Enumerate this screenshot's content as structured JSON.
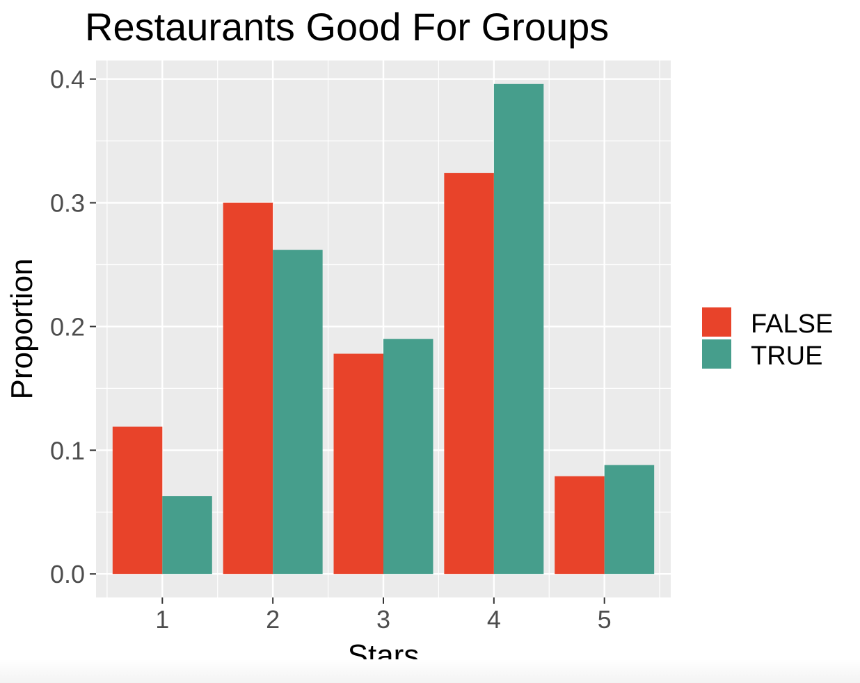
{
  "chart_data": {
    "type": "bar",
    "title": "Restaurants Good For Groups",
    "xlabel": "Stars",
    "ylabel": "Proportion",
    "categories": [
      "1",
      "2",
      "3",
      "4",
      "5"
    ],
    "series": [
      {
        "name": "FALSE",
        "color": "#e8432a",
        "values": [
          0.119,
          0.3,
          0.178,
          0.324,
          0.079
        ]
      },
      {
        "name": "TRUE",
        "color": "#469e8c",
        "values": [
          0.063,
          0.262,
          0.19,
          0.396,
          0.088
        ]
      }
    ],
    "ylim": [
      -0.019,
      0.415
    ],
    "yticks": [
      0.0,
      0.1,
      0.2,
      0.3,
      0.4
    ],
    "ytick_labels": [
      "0.0",
      "0.1",
      "0.2",
      "0.3",
      "0.4"
    ],
    "grid": true,
    "legend_position": "right",
    "panel_background": "#ebebeb",
    "grid_color": "#ffffff"
  }
}
